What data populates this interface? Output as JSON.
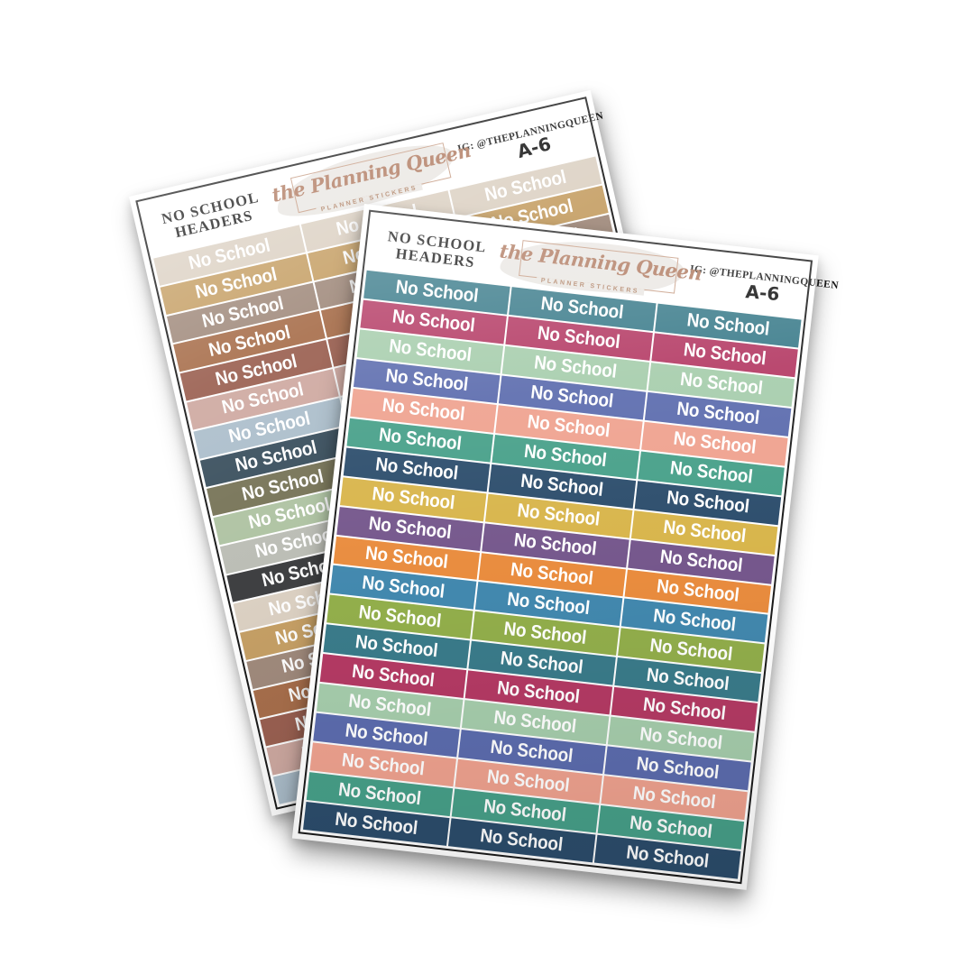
{
  "product": {
    "title_line1": "NO SCHOOL",
    "title_line2": "HEADERS",
    "brand_name": "the Planning Queen",
    "brand_tagline": "PLANNER STICKERS",
    "instagram_handle": "IG: @THEPLANNINGQUEEN",
    "sheet_code": "A-6",
    "sticker_label": "No School"
  },
  "brand_colors": {
    "rose_gold": "#b07a60",
    "frame_black": "#1a1a1a",
    "sticker_text": "#ffffff"
  },
  "front_sheet": {
    "columns": 3,
    "rows": 19,
    "row_colors": [
      "#3a7b8a",
      "#b43a64",
      "#a6cdac",
      "#5c6cae",
      "#efa28f",
      "#47a089",
      "#2c4d6c",
      "#d8b54b",
      "#75578c",
      "#e98c3e",
      "#4288ae",
      "#92ae4b",
      "#3a7b8a",
      "#b43a64",
      "#a6cdac",
      "#5c6cae",
      "#efa28f",
      "#47a089",
      "#2c4d6c"
    ]
  },
  "back_sheet": {
    "columns": 3,
    "rows": 19,
    "row_colors": [
      "#dcd1c3",
      "#c6a066",
      "#a18b7d",
      "#a86f4c",
      "#9b6152",
      "#cfaaa2",
      "#adbfcc",
      "#3d5260",
      "#79765a",
      "#b0c4a4",
      "#bcbeb6",
      "#3f4042",
      "#dcd1c3",
      "#c6a066",
      "#a18b7d",
      "#a86f4c",
      "#9b6152",
      "#cfaaa2",
      "#adbfcc"
    ]
  }
}
